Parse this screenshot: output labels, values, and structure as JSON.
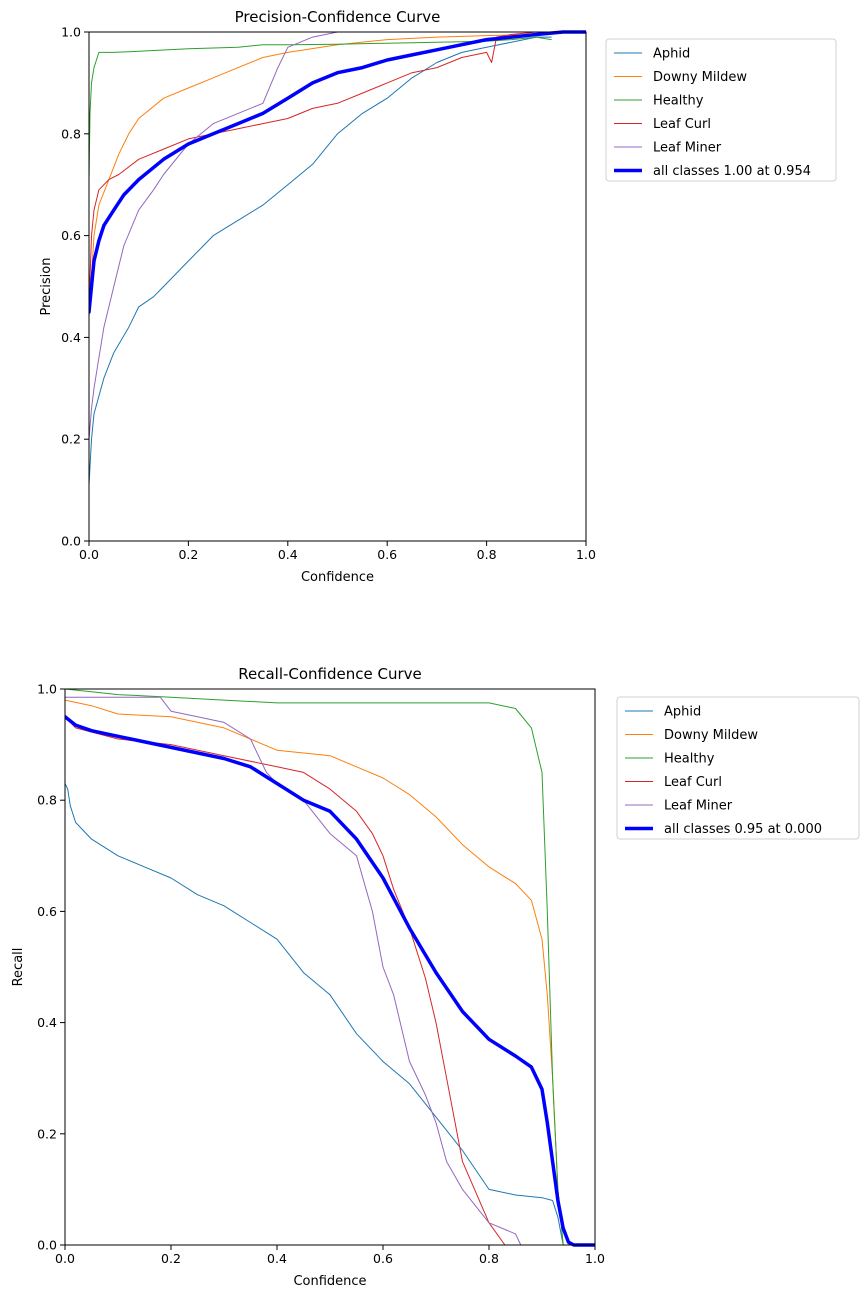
{
  "chart_data": [
    {
      "type": "line",
      "title": "Precision-Confidence Curve",
      "xlabel": "Confidence",
      "ylabel": "Precision",
      "xlim": [
        0,
        1
      ],
      "ylim": [
        0,
        1
      ],
      "xticks": [
        "0.0",
        "0.2",
        "0.4",
        "0.6",
        "0.8",
        "1.0"
      ],
      "yticks": [
        "0.0",
        "0.2",
        "0.4",
        "0.6",
        "0.8",
        "1.0"
      ],
      "grid": false,
      "legend": "outside-right",
      "series": [
        {
          "name": "Aphid",
          "color": "#1f77b4",
          "width": 1,
          "x": [
            0.0,
            0.005,
            0.01,
            0.03,
            0.05,
            0.08,
            0.1,
            0.13,
            0.15,
            0.2,
            0.25,
            0.3,
            0.35,
            0.4,
            0.45,
            0.5,
            0.55,
            0.6,
            0.65,
            0.7,
            0.75,
            0.8,
            0.85,
            0.9,
            0.93
          ],
          "y": [
            0.11,
            0.2,
            0.25,
            0.32,
            0.37,
            0.42,
            0.46,
            0.48,
            0.5,
            0.55,
            0.6,
            0.63,
            0.66,
            0.7,
            0.74,
            0.8,
            0.84,
            0.87,
            0.91,
            0.94,
            0.96,
            0.97,
            0.98,
            0.99,
            0.99
          ]
        },
        {
          "name": "Downy Mildew",
          "color": "#ff7f0e",
          "width": 1,
          "x": [
            0.0,
            0.005,
            0.01,
            0.02,
            0.04,
            0.06,
            0.08,
            0.1,
            0.15,
            0.2,
            0.25,
            0.3,
            0.35,
            0.4,
            0.5,
            0.6,
            0.7,
            0.8,
            0.9,
            0.93
          ],
          "y": [
            0.44,
            0.52,
            0.6,
            0.66,
            0.71,
            0.76,
            0.8,
            0.83,
            0.87,
            0.89,
            0.91,
            0.93,
            0.95,
            0.96,
            0.975,
            0.985,
            0.99,
            0.993,
            0.995,
            1.0
          ]
        },
        {
          "name": "Healthy",
          "color": "#2ca02c",
          "width": 1,
          "x": [
            0.0,
            0.002,
            0.005,
            0.01,
            0.02,
            0.05,
            0.1,
            0.2,
            0.3,
            0.35,
            0.4,
            0.5,
            0.6,
            0.7,
            0.8,
            0.85,
            0.9,
            0.93
          ],
          "y": [
            0.71,
            0.84,
            0.9,
            0.93,
            0.96,
            0.96,
            0.962,
            0.967,
            0.97,
            0.975,
            0.975,
            0.976,
            0.978,
            0.98,
            0.982,
            0.985,
            0.99,
            0.985
          ]
        },
        {
          "name": "Leaf Curl",
          "color": "#d62728",
          "width": 1,
          "x": [
            0.0,
            0.005,
            0.01,
            0.02,
            0.04,
            0.06,
            0.1,
            0.15,
            0.2,
            0.25,
            0.3,
            0.35,
            0.4,
            0.45,
            0.5,
            0.55,
            0.6,
            0.65,
            0.7,
            0.75,
            0.8,
            0.81,
            0.82,
            0.85,
            0.9,
            0.95,
            1.0
          ],
          "y": [
            0.46,
            0.6,
            0.65,
            0.69,
            0.71,
            0.72,
            0.75,
            0.77,
            0.79,
            0.8,
            0.81,
            0.82,
            0.83,
            0.85,
            0.86,
            0.88,
            0.9,
            0.92,
            0.93,
            0.95,
            0.96,
            0.94,
            0.99,
            0.995,
            1.0,
            1.0,
            1.0
          ]
        },
        {
          "name": "Leaf Miner",
          "color": "#9467bd",
          "width": 1,
          "x": [
            0.0,
            0.005,
            0.01,
            0.02,
            0.03,
            0.05,
            0.07,
            0.1,
            0.13,
            0.15,
            0.2,
            0.25,
            0.3,
            0.35,
            0.38,
            0.4,
            0.45,
            0.5
          ],
          "y": [
            0.2,
            0.26,
            0.3,
            0.36,
            0.42,
            0.5,
            0.58,
            0.65,
            0.69,
            0.72,
            0.78,
            0.82,
            0.84,
            0.86,
            0.93,
            0.97,
            0.99,
            1.0
          ]
        },
        {
          "name": "all classes 1.00 at 0.954",
          "color": "#0000ff",
          "width": 3.5,
          "x": [
            0.0,
            0.005,
            0.01,
            0.02,
            0.03,
            0.05,
            0.07,
            0.1,
            0.15,
            0.2,
            0.25,
            0.3,
            0.35,
            0.4,
            0.45,
            0.5,
            0.55,
            0.6,
            0.65,
            0.7,
            0.75,
            0.8,
            0.85,
            0.9,
            0.954,
            1.0
          ],
          "y": [
            0.45,
            0.5,
            0.55,
            0.59,
            0.62,
            0.65,
            0.68,
            0.71,
            0.75,
            0.78,
            0.8,
            0.82,
            0.84,
            0.87,
            0.9,
            0.92,
            0.93,
            0.945,
            0.955,
            0.965,
            0.975,
            0.985,
            0.99,
            0.995,
            1.0,
            1.0
          ]
        }
      ]
    },
    {
      "type": "line",
      "title": "Recall-Confidence Curve",
      "xlabel": "Confidence",
      "ylabel": "Recall",
      "xlim": [
        0,
        1
      ],
      "ylim": [
        0,
        1
      ],
      "xticks": [
        "0.0",
        "0.2",
        "0.4",
        "0.6",
        "0.8",
        "1.0"
      ],
      "yticks": [
        "0.0",
        "0.2",
        "0.4",
        "0.6",
        "0.8",
        "1.0"
      ],
      "grid": false,
      "legend": "outside-right",
      "series": [
        {
          "name": "Aphid",
          "color": "#1f77b4",
          "width": 1,
          "x": [
            0.0,
            0.005,
            0.01,
            0.02,
            0.05,
            0.1,
            0.15,
            0.2,
            0.25,
            0.3,
            0.35,
            0.4,
            0.45,
            0.5,
            0.55,
            0.6,
            0.65,
            0.7,
            0.75,
            0.8,
            0.85,
            0.9,
            0.92,
            0.93,
            0.94,
            1.0
          ],
          "y": [
            0.83,
            0.82,
            0.79,
            0.76,
            0.73,
            0.7,
            0.68,
            0.66,
            0.63,
            0.61,
            0.58,
            0.55,
            0.49,
            0.45,
            0.38,
            0.33,
            0.29,
            0.23,
            0.17,
            0.1,
            0.09,
            0.085,
            0.08,
            0.05,
            0.0,
            0.0
          ]
        },
        {
          "name": "Downy Mildew",
          "color": "#ff7f0e",
          "width": 1,
          "x": [
            0.0,
            0.05,
            0.1,
            0.2,
            0.3,
            0.4,
            0.5,
            0.55,
            0.6,
            0.65,
            0.7,
            0.75,
            0.8,
            0.85,
            0.88,
            0.9,
            0.91,
            0.92,
            0.93,
            0.94,
            1.0
          ],
          "y": [
            0.98,
            0.97,
            0.955,
            0.95,
            0.93,
            0.89,
            0.88,
            0.86,
            0.84,
            0.81,
            0.77,
            0.72,
            0.68,
            0.65,
            0.62,
            0.55,
            0.45,
            0.3,
            0.1,
            0.0,
            0.0
          ]
        },
        {
          "name": "Healthy",
          "color": "#2ca02c",
          "width": 1,
          "x": [
            0.0,
            0.05,
            0.1,
            0.2,
            0.3,
            0.4,
            0.5,
            0.6,
            0.7,
            0.8,
            0.85,
            0.88,
            0.9,
            0.91,
            0.92,
            0.93,
            0.94,
            0.95,
            1.0
          ],
          "y": [
            1.0,
            0.995,
            0.99,
            0.985,
            0.98,
            0.975,
            0.975,
            0.975,
            0.975,
            0.975,
            0.965,
            0.93,
            0.85,
            0.6,
            0.3,
            0.1,
            0.0,
            0.0,
            0.0
          ]
        },
        {
          "name": "Leaf Curl",
          "color": "#d62728",
          "width": 1,
          "x": [
            0.0,
            0.02,
            0.1,
            0.2,
            0.3,
            0.4,
            0.45,
            0.5,
            0.55,
            0.58,
            0.6,
            0.62,
            0.65,
            0.68,
            0.7,
            0.72,
            0.75,
            0.8,
            0.83,
            0.84,
            1.0
          ],
          "y": [
            0.95,
            0.93,
            0.91,
            0.9,
            0.88,
            0.86,
            0.85,
            0.82,
            0.78,
            0.74,
            0.7,
            0.64,
            0.57,
            0.48,
            0.4,
            0.3,
            0.15,
            0.04,
            0.0,
            0.0,
            0.0
          ]
        },
        {
          "name": "Leaf Miner",
          "color": "#9467bd",
          "width": 1,
          "x": [
            0.0,
            0.05,
            0.1,
            0.18,
            0.2,
            0.25,
            0.3,
            0.35,
            0.38,
            0.4,
            0.45,
            0.5,
            0.55,
            0.58,
            0.6,
            0.62,
            0.65,
            0.68,
            0.7,
            0.72,
            0.75,
            0.8,
            0.85,
            0.86,
            1.0
          ],
          "y": [
            0.985,
            0.985,
            0.985,
            0.985,
            0.96,
            0.95,
            0.94,
            0.91,
            0.85,
            0.83,
            0.8,
            0.74,
            0.7,
            0.6,
            0.5,
            0.45,
            0.33,
            0.27,
            0.22,
            0.15,
            0.1,
            0.04,
            0.02,
            0.0,
            0.0
          ]
        },
        {
          "name": "all classes 0.95 at 0.000",
          "color": "#0000ff",
          "width": 3.5,
          "x": [
            0.0,
            0.02,
            0.05,
            0.1,
            0.2,
            0.3,
            0.35,
            0.4,
            0.45,
            0.5,
            0.55,
            0.6,
            0.65,
            0.7,
            0.75,
            0.8,
            0.85,
            0.88,
            0.9,
            0.91,
            0.92,
            0.93,
            0.94,
            0.95,
            0.96,
            1.0
          ],
          "y": [
            0.95,
            0.935,
            0.925,
            0.915,
            0.895,
            0.875,
            0.86,
            0.83,
            0.8,
            0.78,
            0.73,
            0.66,
            0.57,
            0.49,
            0.42,
            0.37,
            0.34,
            0.32,
            0.28,
            0.22,
            0.15,
            0.08,
            0.03,
            0.005,
            0.0,
            0.0
          ]
        }
      ]
    }
  ]
}
